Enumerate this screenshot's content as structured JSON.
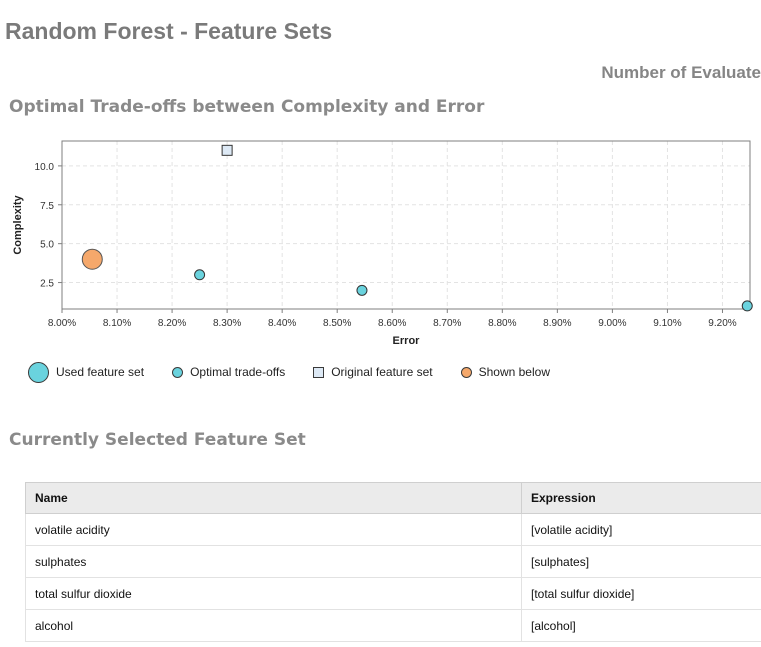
{
  "page": {
    "title": "Random Forest - Feature Sets",
    "evaluations_header": "Number of Evaluate"
  },
  "sections": {
    "tradeoffs_title": "Optimal Trade-offs between Complexity and Error",
    "selected_title": "Currently Selected Feature Set"
  },
  "chart_data": {
    "type": "scatter",
    "xlabel": "Error",
    "ylabel": "Complexity",
    "xlim": [
      0.08,
      0.0925
    ],
    "ylim": [
      0.8,
      11.6
    ],
    "x_ticks": [
      0.08,
      0.081,
      0.082,
      0.083,
      0.084,
      0.085,
      0.086,
      0.087,
      0.088,
      0.089,
      0.09,
      0.091,
      0.092
    ],
    "x_tick_labels": [
      "8.00%",
      "8.10%",
      "8.20%",
      "8.30%",
      "8.40%",
      "8.50%",
      "8.60%",
      "8.70%",
      "8.80%",
      "8.90%",
      "9.00%",
      "9.10%",
      "9.20%"
    ],
    "y_ticks": [
      2.5,
      5.0,
      7.5,
      10.0
    ],
    "y_tick_labels": [
      "2.5",
      "5.0",
      "7.5",
      "10.0"
    ],
    "grid": true,
    "legend_position": "bottom",
    "series": [
      {
        "name": "Used feature set",
        "marker": "circle-large",
        "color": "#6ad3de",
        "points": []
      },
      {
        "name": "Optimal trade-offs",
        "marker": "circle",
        "color": "#6ad3de",
        "points": [
          {
            "x": 0.0825,
            "y": 3
          },
          {
            "x": 0.08545,
            "y": 2
          },
          {
            "x": 0.09245,
            "y": 1
          }
        ]
      },
      {
        "name": "Original feature set",
        "marker": "square",
        "color": "#dde9f5",
        "points": [
          {
            "x": 0.083,
            "y": 11
          }
        ]
      },
      {
        "name": "Shown below",
        "marker": "circle-large",
        "color": "#f5a86b",
        "points": [
          {
            "x": 0.08055,
            "y": 4
          }
        ]
      }
    ]
  },
  "legend": {
    "items": [
      {
        "label": "Used feature set",
        "color": "#6ad3de"
      },
      {
        "label": "Optimal trade-offs",
        "color": "#6ad3de"
      },
      {
        "label": "Original feature set",
        "color": "#dde9f5"
      },
      {
        "label": "Shown below",
        "color": "#f5a86b"
      }
    ]
  },
  "table": {
    "headers": [
      "Name",
      "Expression"
    ],
    "rows": [
      [
        "volatile acidity",
        "[volatile acidity]"
      ],
      [
        "sulphates",
        "[sulphates]"
      ],
      [
        "total sulfur dioxide",
        "[total sulfur dioxide]"
      ],
      [
        "alcohol",
        "[alcohol]"
      ]
    ]
  }
}
